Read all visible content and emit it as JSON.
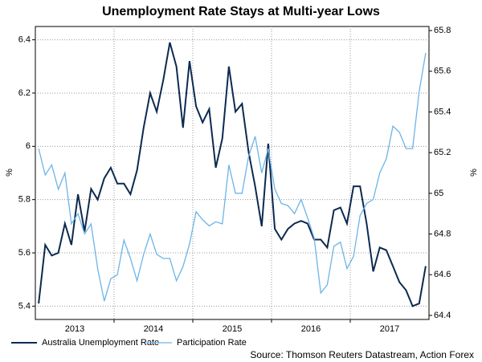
{
  "chart_data": {
    "type": "line",
    "title": "Unemployment Rate Stays at Multi-year Lows",
    "ylabel": "%",
    "y2label": "%",
    "source": "Source: Thomson Reuters Datastream, Action Forex",
    "categories": [
      null,
      null,
      null,
      null,
      null,
      null,
      "2013",
      null,
      null,
      null,
      null,
      null,
      null,
      null,
      null,
      null,
      null,
      null,
      "2014",
      null,
      null,
      null,
      null,
      null,
      null,
      null,
      null,
      null,
      null,
      null,
      "2015",
      null,
      null,
      null,
      null,
      null,
      null,
      null,
      null,
      null,
      null,
      null,
      "2016",
      null,
      null,
      null,
      null,
      null,
      null,
      null,
      null,
      null,
      null,
      null,
      "2017",
      null,
      null,
      null,
      null,
      null
    ],
    "series": [
      {
        "name": "Australia Unemployment Rate",
        "color": "#0c2a50",
        "axis": "y",
        "values": [
          5.41,
          5.63,
          5.59,
          5.6,
          5.71,
          5.63,
          5.82,
          5.68,
          5.84,
          5.8,
          5.88,
          5.92,
          5.86,
          5.86,
          5.82,
          5.91,
          6.07,
          6.2,
          6.13,
          6.25,
          6.39,
          6.3,
          6.07,
          6.32,
          6.15,
          6.09,
          6.14,
          5.92,
          6.03,
          6.3,
          6.13,
          6.16,
          5.98,
          5.85,
          5.7,
          6.01,
          5.69,
          5.65,
          5.69,
          5.71,
          5.72,
          5.71,
          5.65,
          5.65,
          5.62,
          5.76,
          5.77,
          5.71,
          5.85,
          5.85,
          5.71,
          5.53,
          5.62,
          5.61,
          5.55,
          5.49,
          5.46,
          5.4,
          5.41,
          5.55
        ]
      },
      {
        "name": "Participation Rate",
        "color": "#6cb4e8",
        "axis": "y2",
        "values": [
          65.22,
          65.09,
          65.14,
          65.02,
          65.1,
          64.85,
          64.9,
          64.8,
          64.85,
          64.63,
          64.47,
          64.58,
          64.6,
          64.77,
          64.68,
          64.57,
          64.7,
          64.8,
          64.7,
          64.68,
          64.68,
          64.57,
          64.64,
          64.75,
          64.91,
          64.87,
          64.84,
          64.86,
          64.85,
          65.14,
          65.0,
          65.0,
          65.18,
          65.28,
          65.1,
          65.22,
          65.02,
          64.95,
          64.94,
          64.9,
          64.97,
          64.88,
          64.78,
          64.51,
          64.55,
          64.74,
          64.76,
          64.63,
          64.69,
          64.89,
          64.95,
          64.97,
          65.1,
          65.17,
          65.33,
          65.3,
          65.22,
          65.22,
          65.5,
          65.69
        ]
      }
    ],
    "ylim": [
      5.35,
      6.45
    ],
    "yticks": [
      5.4,
      5.6,
      5.8,
      6.0,
      6.2,
      6.4
    ],
    "y2lim": [
      64.38,
      65.82
    ],
    "y2ticks": [
      64.4,
      64.6,
      64.8,
      65.0,
      65.2,
      65.4,
      65.6,
      65.8
    ],
    "grid": true
  }
}
